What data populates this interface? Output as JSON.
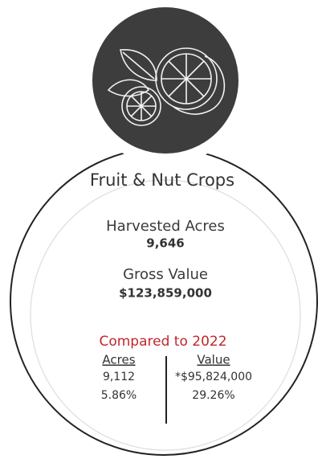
{
  "card": {
    "title": "Fruit & Nut Crops",
    "harvested_acres": {
      "label": "Harvested Acres",
      "value": "9,646"
    },
    "gross_value": {
      "label": "Gross Value",
      "value": "$123,859,000"
    },
    "comparison": {
      "heading": "Compared to 2022",
      "acres": {
        "header": "Acres",
        "value": "9,112",
        "change": "5.86%"
      },
      "value": {
        "header": "Value",
        "value": "*$95,824,000",
        "change": "29.26%"
      }
    }
  }
}
